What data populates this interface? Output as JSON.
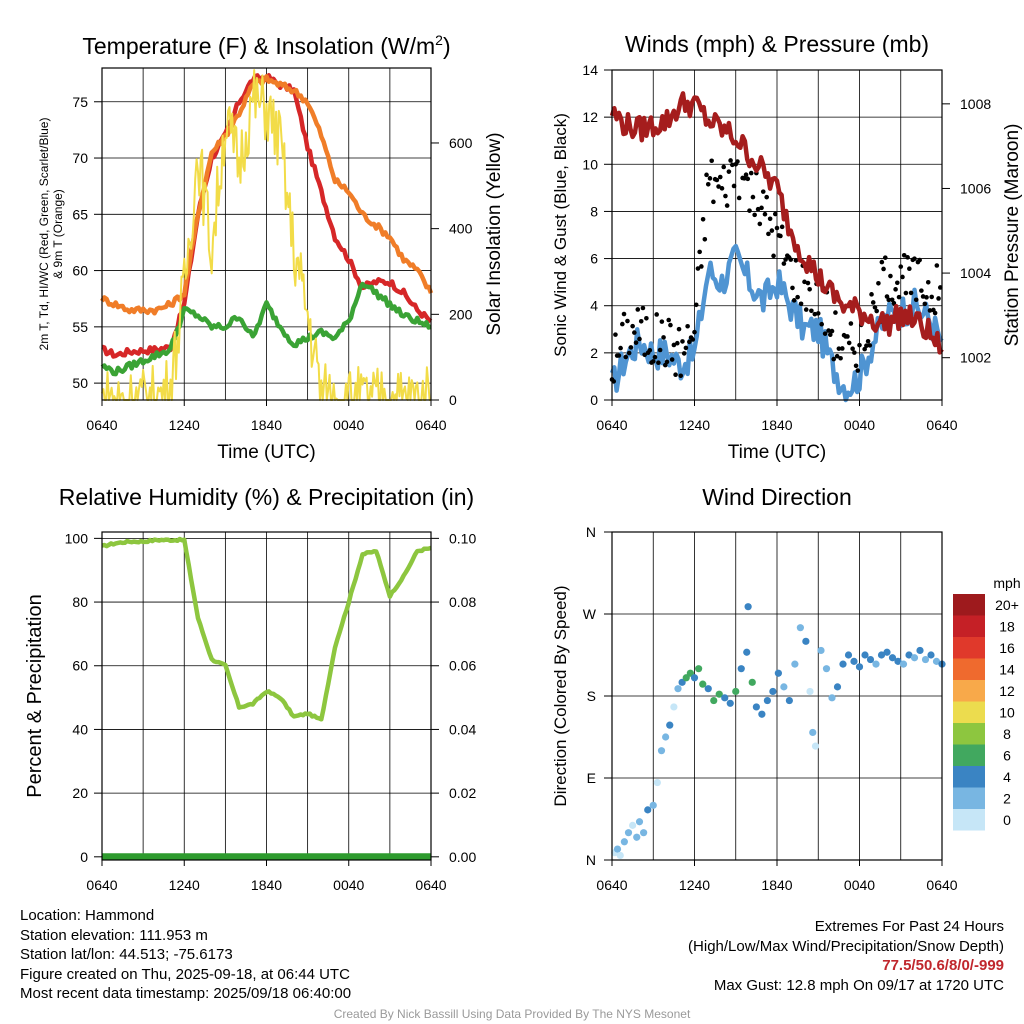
{
  "chart_data": [
    {
      "type": "line",
      "title": "Temperature (F) & Insolation (W/m²)",
      "xlabel": "Time (UTC)",
      "ylabel_left": "2m T, Td, HI/WC (Red, Green, Scarlet/Blue) & 9m T (Orange)",
      "ylabel_right": "Solar Insolation (Yellow)",
      "x_ticks": [
        "0640",
        "1240",
        "1840",
        "0040",
        "0640"
      ],
      "ylim": [
        48.5,
        78
      ],
      "y_ticks": [
        50,
        55,
        60,
        65,
        70,
        75
      ],
      "y2lim": [
        0,
        775
      ],
      "y2_ticks": [
        0,
        200,
        400,
        600
      ],
      "x_hours": [
        0,
        1,
        2,
        3,
        4,
        5,
        6,
        7,
        8,
        9,
        10,
        11,
        12,
        13,
        14,
        15,
        16,
        17,
        18,
        19,
        20,
        21,
        22,
        23,
        24
      ],
      "series": [
        {
          "color": "#d62728",
          "role": "2m T",
          "values": [
            53,
            52.5,
            52.8,
            52.9,
            53,
            53.2,
            57,
            65,
            70,
            72,
            75,
            77,
            77.2,
            76.5,
            76,
            71,
            67,
            63,
            61,
            58.5,
            59,
            59,
            58,
            56.5,
            55.5
          ]
        },
        {
          "color": "#f07d28",
          "role": "9m T",
          "values": [
            57.5,
            57,
            56.5,
            56.5,
            56.5,
            57,
            58,
            65,
            70.5,
            72,
            74,
            76.5,
            77,
            76.5,
            76,
            75,
            72,
            68,
            67,
            65,
            64,
            63,
            61,
            60,
            58
          ]
        },
        {
          "color": "#3aa335",
          "role": "Td",
          "values": [
            51.5,
            51,
            51.5,
            52,
            52.5,
            53,
            56.5,
            56,
            55,
            55,
            56,
            54,
            57,
            55,
            53.5,
            54,
            54.5,
            54,
            55.5,
            59,
            58,
            57,
            56,
            55.5,
            55
          ]
        },
        {
          "color": "#f2dc48",
          "role": "Solar",
          "values": [
            0,
            0,
            0,
            0,
            5,
            30,
            260,
            580,
            350,
            650,
            550,
            700,
            680,
            600,
            350,
            200,
            15,
            0,
            0,
            0,
            0,
            0,
            0,
            0,
            0
          ]
        }
      ]
    },
    {
      "type": "line",
      "title": "Winds (mph) & Pressure (mb)",
      "xlabel": "Time (UTC)",
      "ylabel_left": "Sonic Wind & Gust (Blue, Black)",
      "ylabel_right": "Station Pressure (Maroon)",
      "x_ticks": [
        "0640",
        "1240",
        "1840",
        "0040",
        "0640"
      ],
      "ylim": [
        0,
        14
      ],
      "y_ticks": [
        0,
        2,
        4,
        6,
        8,
        10,
        12,
        14
      ],
      "y2lim": [
        1001,
        1008.8
      ],
      "y2_ticks": [
        1002,
        1004,
        1006,
        1008
      ],
      "x_hours": [
        0,
        1,
        2,
        3,
        4,
        5,
        6,
        7,
        8,
        9,
        10,
        11,
        12,
        13,
        14,
        15,
        16,
        17,
        18,
        19,
        20,
        21,
        22,
        23,
        24
      ],
      "series": [
        {
          "color": "#4f94d2",
          "role": "wind",
          "values": [
            0.6,
            1.8,
            2.5,
            2,
            2,
            1.5,
            2,
            5.5,
            5,
            6,
            5,
            4.2,
            5,
            4,
            3,
            3,
            1.5,
            0.5,
            1,
            2.5,
            3.5,
            3.8,
            4,
            3.5,
            2.5
          ]
        },
        {
          "color": "#000000",
          "role": "gust",
          "values": [
            1.5,
            2.8,
            3,
            2.5,
            2.5,
            2,
            3,
            9.5,
            9,
            10,
            9,
            8,
            7,
            5.5,
            5,
            4.5,
            3,
            2,
            2.5,
            3.5,
            5.5,
            5,
            5,
            4.8,
            4.5
          ]
        },
        {
          "color": "#a51d1d",
          "role": "pressure",
          "values": [
            1007.8,
            1007.5,
            1007.4,
            1007.5,
            1007.6,
            1008,
            1008,
            1007.6,
            1007.4,
            1007.2,
            1006.8,
            1006.4,
            1006,
            1005,
            1004.4,
            1003.9,
            1003.5,
            1003.2,
            1003.1,
            1002.9,
            1002.8,
            1003,
            1002.9,
            1002.6,
            1002.2
          ]
        }
      ]
    },
    {
      "type": "line",
      "title": "Relative Humidity (%) & Precipitation (in)",
      "xlabel": "",
      "ylabel_left": "Percent & Precipitation",
      "x_ticks": [
        "0640",
        "1240",
        "1840",
        "0040",
        "0640"
      ],
      "ylim": [
        -1,
        102
      ],
      "y_ticks": [
        0,
        20,
        40,
        60,
        80,
        100
      ],
      "y2lim": [
        -0.001,
        0.102
      ],
      "y2_ticks": [
        "0.00",
        "0.02",
        "0.04",
        "0.06",
        "0.08",
        "0.10"
      ],
      "x_hours": [
        0,
        1,
        2,
        3,
        4,
        5,
        6,
        7,
        8,
        9,
        10,
        11,
        12,
        13,
        14,
        15,
        16,
        17,
        18,
        19,
        20,
        21,
        22,
        23,
        24
      ],
      "series": [
        {
          "color": "#8dc63f",
          "role": "RH",
          "values": [
            97.5,
            98.5,
            99,
            99,
            99.5,
            99.5,
            99.5,
            75,
            62,
            60,
            47,
            48,
            52,
            50,
            44,
            45,
            43,
            66,
            80,
            95,
            96,
            82,
            88,
            96,
            97
          ]
        },
        {
          "color": "#2e9b2e",
          "role": "precip",
          "values": [
            0,
            0,
            0,
            0,
            0,
            0,
            0,
            0,
            0,
            0,
            0,
            0,
            0,
            0,
            0,
            0,
            0,
            0,
            0,
            0,
            0,
            0,
            0,
            0,
            0
          ]
        }
      ]
    },
    {
      "type": "scatter",
      "title": "Wind Direction",
      "ylabel_left": "Direction (Colored By Speed)",
      "x_ticks": [
        "0640",
        "1240",
        "1840",
        "0040",
        "0640"
      ],
      "y_ticks": [
        "N",
        "E",
        "S",
        "W",
        "N"
      ],
      "ylim": [
        0,
        360
      ],
      "legend": {
        "title": "mph",
        "labels": [
          "20+",
          "18",
          "16",
          "14",
          "12",
          "10",
          "8",
          "6",
          "4",
          "2",
          "0"
        ],
        "colors": [
          "#9e1a1d",
          "#c52026",
          "#e0392b",
          "#ef6a2e",
          "#f8a94a",
          "#ecdc4e",
          "#8dc63f",
          "#41a85f",
          "#3a84c3",
          "#78b6e2",
          "#c6e6f7"
        ]
      },
      "points": [
        {
          "x": 0.2,
          "y": 8,
          "color": "#c6e6f7"
        },
        {
          "x": 0.4,
          "y": 12,
          "color": "#78b6e2"
        },
        {
          "x": 0.6,
          "y": 5,
          "color": "#c6e6f7"
        },
        {
          "x": 0.9,
          "y": 20,
          "color": "#78b6e2"
        },
        {
          "x": 1.2,
          "y": 30,
          "color": "#78b6e2"
        },
        {
          "x": 1.5,
          "y": 38,
          "color": "#c6e6f7"
        },
        {
          "x": 1.8,
          "y": 25,
          "color": "#78b6e2"
        },
        {
          "x": 2.0,
          "y": 42,
          "color": "#78b6e2"
        },
        {
          "x": 2.3,
          "y": 30,
          "color": "#78b6e2"
        },
        {
          "x": 2.6,
          "y": 55,
          "color": "#3a84c3"
        },
        {
          "x": 3.0,
          "y": 60,
          "color": "#78b6e2"
        },
        {
          "x": 3.3,
          "y": 85,
          "color": "#c6e6f7"
        },
        {
          "x": 3.6,
          "y": 120,
          "color": "#78b6e2"
        },
        {
          "x": 3.9,
          "y": 135,
          "color": "#78b6e2"
        },
        {
          "x": 4.2,
          "y": 148,
          "color": "#3a84c3"
        },
        {
          "x": 4.5,
          "y": 168,
          "color": "#c6e6f7"
        },
        {
          "x": 4.8,
          "y": 188,
          "color": "#78b6e2"
        },
        {
          "x": 5.1,
          "y": 195,
          "color": "#3a84c3"
        },
        {
          "x": 5.4,
          "y": 200,
          "color": "#41a85f"
        },
        {
          "x": 5.7,
          "y": 205,
          "color": "#41a85f"
        },
        {
          "x": 6.0,
          "y": 200,
          "color": "#3a84c3"
        },
        {
          "x": 6.3,
          "y": 210,
          "color": "#41a85f"
        },
        {
          "x": 6.6,
          "y": 193,
          "color": "#41a85f"
        },
        {
          "x": 7.0,
          "y": 188,
          "color": "#3a84c3"
        },
        {
          "x": 7.4,
          "y": 175,
          "color": "#41a85f"
        },
        {
          "x": 7.8,
          "y": 182,
          "color": "#41a85f"
        },
        {
          "x": 8.2,
          "y": 178,
          "color": "#3a84c3"
        },
        {
          "x": 8.6,
          "y": 172,
          "color": "#3a84c3"
        },
        {
          "x": 9.0,
          "y": 185,
          "color": "#41a85f"
        },
        {
          "x": 9.4,
          "y": 210,
          "color": "#3a84c3"
        },
        {
          "x": 9.8,
          "y": 228,
          "color": "#3a84c3"
        },
        {
          "x": 9.9,
          "y": 278,
          "color": "#3a84c3"
        },
        {
          "x": 10.2,
          "y": 195,
          "color": "#41a85f"
        },
        {
          "x": 10.5,
          "y": 168,
          "color": "#3a84c3"
        },
        {
          "x": 10.9,
          "y": 160,
          "color": "#3a84c3"
        },
        {
          "x": 11.3,
          "y": 175,
          "color": "#3a84c3"
        },
        {
          "x": 11.7,
          "y": 185,
          "color": "#3a84c3"
        },
        {
          "x": 12.1,
          "y": 205,
          "color": "#3a84c3"
        },
        {
          "x": 12.5,
          "y": 190,
          "color": "#78b6e2"
        },
        {
          "x": 12.9,
          "y": 175,
          "color": "#3a84c3"
        },
        {
          "x": 13.3,
          "y": 215,
          "color": "#78b6e2"
        },
        {
          "x": 13.7,
          "y": 255,
          "color": "#78b6e2"
        },
        {
          "x": 14.1,
          "y": 240,
          "color": "#3a84c3"
        },
        {
          "x": 14.4,
          "y": 185,
          "color": "#c6e6f7"
        },
        {
          "x": 14.6,
          "y": 140,
          "color": "#78b6e2"
        },
        {
          "x": 14.8,
          "y": 125,
          "color": "#c6e6f7"
        },
        {
          "x": 15.2,
          "y": 230,
          "color": "#78b6e2"
        },
        {
          "x": 15.6,
          "y": 210,
          "color": "#78b6e2"
        },
        {
          "x": 16.0,
          "y": 178,
          "color": "#78b6e2"
        },
        {
          "x": 16.4,
          "y": 190,
          "color": "#3a84c3"
        },
        {
          "x": 16.8,
          "y": 215,
          "color": "#3a84c3"
        },
        {
          "x": 17.2,
          "y": 225,
          "color": "#3a84c3"
        },
        {
          "x": 17.6,
          "y": 218,
          "color": "#3a84c3"
        },
        {
          "x": 18.0,
          "y": 212,
          "color": "#3a84c3"
        },
        {
          "x": 18.4,
          "y": 225,
          "color": "#3a84c3"
        },
        {
          "x": 18.8,
          "y": 220,
          "color": "#3a84c3"
        },
        {
          "x": 19.2,
          "y": 215,
          "color": "#78b6e2"
        },
        {
          "x": 19.6,
          "y": 225,
          "color": "#3a84c3"
        },
        {
          "x": 20.0,
          "y": 228,
          "color": "#3a84c3"
        },
        {
          "x": 20.4,
          "y": 222,
          "color": "#3a84c3"
        },
        {
          "x": 20.8,
          "y": 218,
          "color": "#3a84c3"
        },
        {
          "x": 21.2,
          "y": 215,
          "color": "#78b6e2"
        },
        {
          "x": 21.6,
          "y": 225,
          "color": "#3a84c3"
        },
        {
          "x": 22.0,
          "y": 222,
          "color": "#78b6e2"
        },
        {
          "x": 22.4,
          "y": 230,
          "color": "#3a84c3"
        },
        {
          "x": 22.8,
          "y": 220,
          "color": "#78b6e2"
        },
        {
          "x": 23.2,
          "y": 225,
          "color": "#3a84c3"
        },
        {
          "x": 23.6,
          "y": 218,
          "color": "#78b6e2"
        },
        {
          "x": 24.0,
          "y": 215,
          "color": "#3a84c3"
        }
      ]
    }
  ],
  "info": {
    "location": "Location: Hammond",
    "elevation": "Station elevation: 111.953 m",
    "latlon": "Station lat/lon: 44.513; -75.6173",
    "created": "Figure created on Thu, 2025-09-18, at 06:44 UTC",
    "recent": "Most recent data timestamp: 2025/09/18 06:40:00"
  },
  "extremes": {
    "title": "Extremes For Past 24 Hours",
    "subtitle": "(High/Low/Max Wind/Precipitation/Snow Depth)",
    "values": "77.5/50.6/8/0/-999",
    "gust": "Max Gust: 12.8 mph On 09/17 at 1720 UTC"
  },
  "credit": "Created By Nick Bassill Using Data Provided By The NYS Mesonet"
}
